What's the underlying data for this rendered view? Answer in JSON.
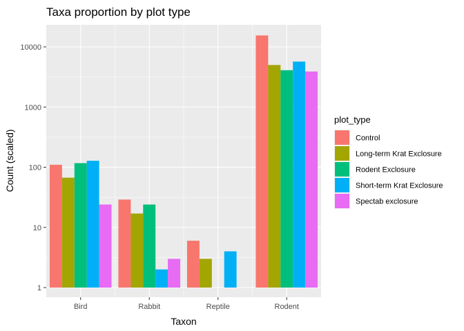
{
  "chart_data": {
    "type": "bar",
    "title": "Taxa proportion by plot type",
    "xlabel": "Taxon",
    "ylabel": "Count (scaled)",
    "yscale": "log10",
    "ylim": [
      1,
      20000
    ],
    "yticks": [
      1,
      10,
      100,
      1000,
      10000
    ],
    "ytick_labels": [
      "1",
      "10",
      "100",
      "1000",
      "10000"
    ],
    "categories": [
      "Bird",
      "Rabbit",
      "Reptile",
      "Rodent"
    ],
    "legend_title": "plot_type",
    "legend_position": "right",
    "grid": true,
    "series": [
      {
        "name": "Control",
        "color": "#F8766D",
        "values": [
          110,
          29,
          6,
          15500
        ]
      },
      {
        "name": "Long-term Krat Exclosure",
        "color": "#A3A500",
        "values": [
          67,
          17,
          3,
          5000
        ]
      },
      {
        "name": "Rodent Exclosure",
        "color": "#00BF7D",
        "values": [
          117,
          24,
          null,
          4100
        ]
      },
      {
        "name": "Short-term Krat Exclosure",
        "color": "#00B0F6",
        "values": [
          128,
          2,
          4,
          5700
        ]
      },
      {
        "name": "Spectab exclosure",
        "color": "#E76BF3",
        "values": [
          24,
          3,
          null,
          3900
        ]
      }
    ]
  }
}
